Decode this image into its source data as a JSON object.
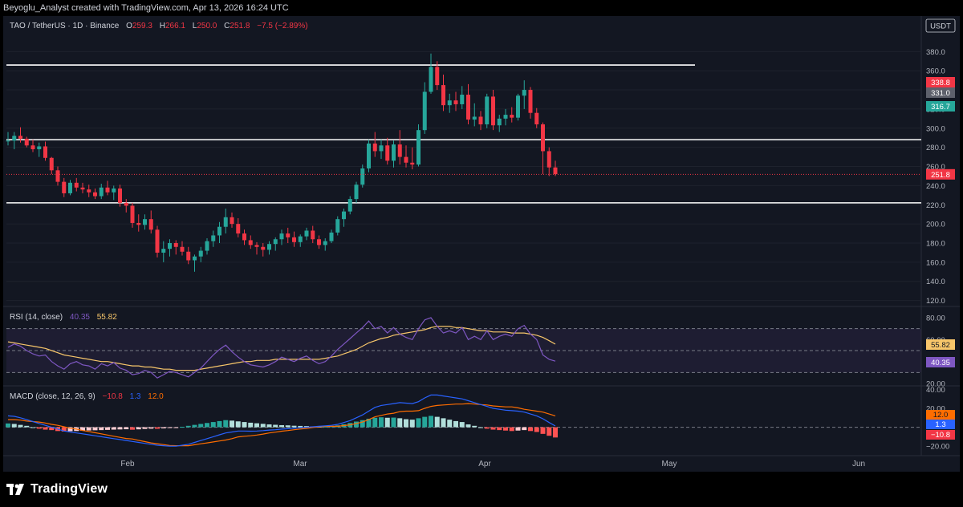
{
  "header": {
    "credit": "Beyoglu_Analyst created with TradingView.com, Apr 13, 2026 16:24 UTC"
  },
  "legend": {
    "symbol": "TAO / TetherUS · 1D · Binance",
    "o_label": "O",
    "o_val": "259.3",
    "h_label": "H",
    "h_val": "266.1",
    "l_label": "L",
    "l_val": "250.0",
    "c_label": "C",
    "c_val": "251.8",
    "change": "−7.5 (−2.89%)"
  },
  "currency_badge": "USDT",
  "price_tags": {
    "t1": "338.8",
    "t2": "331.0",
    "t3": "316.7",
    "last": "251.8"
  },
  "rsi": {
    "label": "RSI (14, close)",
    "val1": "40.35",
    "val2": "55.82",
    "tag_ma": "55.82",
    "tag_rsi": "40.35"
  },
  "macd": {
    "label": "MACD (close, 12, 26, 9)",
    "hist": "−10.8",
    "macd": "1.3",
    "signal": "12.0",
    "tag_signal": "12.0",
    "tag_macd": "1.3",
    "tag_hist": "−10.8"
  },
  "brand": {
    "name": "TradingView"
  },
  "colors": {
    "up": "#26a69a",
    "down": "#f23645",
    "bg": "#131722",
    "grid": "#2a2e39",
    "rsi": "#7e57c2",
    "rsi_ma": "#f7c66a",
    "macd": "#2962ff",
    "signal": "#ff6d00",
    "level": "#ffffff"
  },
  "chart_data": [
    {
      "type": "candlestick",
      "title": "TAO / TetherUS · 1D · Binance",
      "x_ticks": [
        "Feb",
        "Mar",
        "Apr",
        "May",
        "Jun"
      ],
      "y_ticks": [
        120,
        140,
        160,
        180,
        200,
        220,
        240,
        260,
        280,
        300,
        320,
        340,
        360,
        380
      ],
      "ylim": [
        118,
        392
      ],
      "horizontal_levels": [
        366,
        288,
        222
      ],
      "candles_ohlc": [
        [
          287,
          296,
          282,
          287
        ],
        [
          287,
          296,
          278,
          292
        ],
        [
          292,
          301,
          285,
          289
        ],
        [
          289,
          291,
          280,
          282
        ],
        [
          282,
          288,
          275,
          278
        ],
        [
          278,
          285,
          270,
          281
        ],
        [
          281,
          286,
          266,
          269
        ],
        [
          269,
          270,
          252,
          256
        ],
        [
          256,
          260,
          240,
          244
        ],
        [
          244,
          248,
          228,
          232
        ],
        [
          232,
          246,
          230,
          243
        ],
        [
          243,
          248,
          234,
          238
        ],
        [
          238,
          243,
          232,
          236
        ],
        [
          236,
          241,
          228,
          233
        ],
        [
          233,
          237,
          226,
          229
        ],
        [
          229,
          242,
          226,
          238
        ],
        [
          238,
          245,
          230,
          233
        ],
        [
          233,
          240,
          225,
          237
        ],
        [
          237,
          241,
          218,
          222
        ],
        [
          222,
          226,
          212,
          219
        ],
        [
          219,
          222,
          196,
          201
        ],
        [
          201,
          210,
          192,
          199
        ],
        [
          199,
          210,
          194,
          205
        ],
        [
          205,
          214,
          190,
          194
        ],
        [
          194,
          198,
          165,
          170
        ],
        [
          170,
          182,
          160,
          174
        ],
        [
          174,
          184,
          166,
          180
        ],
        [
          180,
          183,
          168,
          176
        ],
        [
          176,
          182,
          167,
          171
        ],
        [
          171,
          176,
          158,
          162
        ],
        [
          162,
          168,
          150,
          166
        ],
        [
          166,
          176,
          160,
          172
        ],
        [
          172,
          185,
          168,
          182
        ],
        [
          182,
          193,
          176,
          188
        ],
        [
          188,
          202,
          180,
          197
        ],
        [
          197,
          216,
          190,
          207
        ],
        [
          207,
          212,
          196,
          200
        ],
        [
          200,
          206,
          186,
          190
        ],
        [
          190,
          194,
          178,
          183
        ],
        [
          183,
          188,
          174,
          178
        ],
        [
          178,
          181,
          168,
          176
        ],
        [
          176,
          180,
          166,
          173
        ],
        [
          173,
          182,
          168,
          179
        ],
        [
          179,
          186,
          172,
          184
        ],
        [
          184,
          194,
          178,
          190
        ],
        [
          190,
          196,
          180,
          186
        ],
        [
          186,
          192,
          176,
          181
        ],
        [
          181,
          189,
          176,
          187
        ],
        [
          187,
          196,
          183,
          193
        ],
        [
          193,
          198,
          180,
          184
        ],
        [
          184,
          188,
          174,
          178
        ],
        [
          178,
          185,
          172,
          182
        ],
        [
          182,
          194,
          180,
          191
        ],
        [
          191,
          208,
          188,
          205
        ],
        [
          205,
          216,
          197,
          213
        ],
        [
          213,
          229,
          210,
          226
        ],
        [
          226,
          244,
          222,
          241
        ],
        [
          241,
          262,
          238,
          258
        ],
        [
          258,
          288,
          254,
          284
        ],
        [
          284,
          296,
          270,
          276
        ],
        [
          276,
          288,
          268,
          282
        ],
        [
          282,
          290,
          262,
          266
        ],
        [
          266,
          287,
          259,
          283
        ],
        [
          283,
          298,
          262,
          270
        ],
        [
          270,
          282,
          259,
          264
        ],
        [
          264,
          280,
          257,
          262
        ],
        [
          262,
          304,
          260,
          298
        ],
        [
          298,
          348,
          294,
          338
        ],
        [
          338,
          378,
          336,
          364
        ],
        [
          364,
          370,
          340,
          345
        ],
        [
          345,
          356,
          318,
          324
        ],
        [
          324,
          336,
          316,
          329
        ],
        [
          329,
          338,
          318,
          325
        ],
        [
          325,
          344,
          320,
          335
        ],
        [
          335,
          346,
          304,
          309
        ],
        [
          309,
          326,
          302,
          312
        ],
        [
          312,
          318,
          298,
          304
        ],
        [
          304,
          336,
          300,
          333
        ],
        [
          333,
          340,
          298,
          303
        ],
        [
          303,
          314,
          296,
          310
        ],
        [
          310,
          320,
          303,
          314
        ],
        [
          314,
          322,
          306,
          311
        ],
        [
          311,
          336,
          308,
          334
        ],
        [
          334,
          350,
          320,
          340
        ],
        [
          340,
          343,
          310,
          316
        ],
        [
          316,
          321,
          300,
          304
        ],
        [
          304,
          306,
          252,
          276
        ],
        [
          276,
          280,
          250,
          259
        ],
        [
          259,
          266,
          250,
          252
        ]
      ],
      "last_price": 251.8
    },
    {
      "type": "line",
      "title": "RSI (14, close)",
      "y_ticks": [
        20,
        60,
        80
      ],
      "ylim": [
        20,
        80
      ],
      "bands": [
        30,
        50,
        70
      ],
      "series": [
        {
          "name": "RSI",
          "values": [
            53,
            56,
            54,
            50,
            47,
            45,
            46,
            40,
            36,
            33,
            38,
            40,
            37,
            36,
            33,
            38,
            36,
            39,
            34,
            32,
            28,
            29,
            32,
            30,
            25,
            28,
            31,
            30,
            28,
            26,
            30,
            34,
            40,
            46,
            51,
            55,
            49,
            44,
            40,
            37,
            36,
            35,
            37,
            40,
            44,
            42,
            40,
            43,
            45,
            41,
            38,
            40,
            45,
            51,
            56,
            61,
            66,
            71,
            77,
            70,
            72,
            66,
            71,
            65,
            62,
            60,
            70,
            78,
            80,
            72,
            66,
            68,
            66,
            71,
            60,
            63,
            60,
            68,
            60,
            63,
            65,
            63,
            70,
            73,
            65,
            60,
            46,
            42,
            40.35
          ]
        },
        {
          "name": "MA",
          "values": [
            58,
            57,
            56,
            55,
            54,
            53,
            52,
            50,
            48,
            46,
            45,
            44,
            43,
            42,
            41,
            40,
            40,
            39,
            38,
            37,
            36,
            36,
            35,
            35,
            34,
            33,
            33,
            32,
            32,
            32,
            32,
            33,
            34,
            35,
            36,
            37,
            38,
            39,
            40,
            40,
            41,
            41,
            41,
            42,
            42,
            42,
            42,
            42,
            42,
            42,
            42,
            43,
            44,
            45,
            47,
            49,
            51,
            54,
            57,
            59,
            61,
            62,
            64,
            65,
            66,
            67,
            68,
            69,
            71,
            72,
            72,
            72,
            71,
            71,
            70,
            69,
            68,
            68,
            67,
            67,
            67,
            66,
            66,
            66,
            65,
            64,
            62,
            59,
            55.82
          ]
        }
      ]
    },
    {
      "type": "bar",
      "title": "MACD (close, 12, 26, 9)",
      "y_ticks": [
        -20,
        20,
        40
      ],
      "ylim": [
        -30,
        42
      ],
      "series": [
        {
          "name": "Histogram",
          "values": [
            4,
            3.5,
            2.5,
            1.5,
            0,
            -1.5,
            -2.5,
            -3,
            -4,
            -4.5,
            -4.2,
            -4,
            -3.6,
            -3.4,
            -3.2,
            -3,
            -2.8,
            -2.5,
            -2.3,
            -2.1,
            -2.6,
            -2.2,
            -1.8,
            -1.5,
            -1.6,
            -1.2,
            -0.8,
            -0.5,
            0.5,
            1.5,
            2.5,
            3.5,
            4.5,
            5.5,
            6.5,
            7.5,
            7,
            6.2,
            5.5,
            4.8,
            4.2,
            3.6,
            3,
            2.6,
            2.2,
            2,
            1.6,
            1.4,
            1.2,
            0.8,
            0.5,
            0.6,
            1,
            2,
            3.2,
            4.5,
            6,
            7.5,
            9,
            10,
            10.5,
            10,
            10.2,
            9.5,
            8.5,
            8,
            9.5,
            11,
            12,
            11,
            9.5,
            8,
            6.5,
            5.5,
            3,
            1.5,
            0,
            -1.5,
            -2.5,
            -3,
            -3.5,
            -4,
            -3.5,
            -3,
            -4,
            -5,
            -7,
            -9,
            -10.8
          ]
        },
        {
          "name": "MACD",
          "values": [
            12,
            11.5,
            10,
            8,
            6,
            4,
            2,
            0,
            -2,
            -4,
            -5,
            -6,
            -7,
            -8,
            -9,
            -10,
            -11,
            -12,
            -13,
            -14,
            -15,
            -16,
            -17,
            -18,
            -19,
            -19.5,
            -20,
            -20,
            -19,
            -18,
            -16,
            -14,
            -12,
            -10,
            -8,
            -6,
            -5,
            -4,
            -4,
            -4.2,
            -4,
            -3.6,
            -3,
            -2.6,
            -2,
            -1.5,
            -1,
            -0.5,
            0,
            0.5,
            1,
            1.5,
            2,
            3,
            5,
            7,
            10,
            13,
            17,
            21,
            23,
            24,
            25,
            26,
            25.5,
            25,
            27,
            31,
            34,
            34,
            33,
            32,
            31,
            30,
            28,
            26,
            24,
            22,
            20,
            19,
            18,
            17.5,
            17,
            16,
            14,
            12,
            9,
            5,
            1.3
          ]
        },
        {
          "name": "Signal",
          "values": [
            8,
            8,
            7.5,
            6.5,
            6,
            5.5,
            4.5,
            3,
            2,
            0.5,
            -1,
            -2,
            -3.5,
            -4.5,
            -5.8,
            -7,
            -8.2,
            -9.5,
            -10.7,
            -11.9,
            -12.4,
            -13.8,
            -15.2,
            -16.5,
            -17.4,
            -18.3,
            -19.2,
            -19.5,
            -19.5,
            -19.5,
            -18.5,
            -17.5,
            -16.5,
            -15.5,
            -14.5,
            -13.5,
            -12,
            -10.2,
            -9.5,
            -9,
            -8.2,
            -7.2,
            -6,
            -5.2,
            -4.2,
            -3.5,
            -2.6,
            -1.9,
            -1.2,
            -0.3,
            0.5,
            0.9,
            1,
            1,
            1.8,
            2.5,
            4,
            5.5,
            8,
            11,
            12.5,
            14,
            14.8,
            16.5,
            17,
            17,
            17.5,
            20,
            22,
            23,
            23.5,
            24,
            24.5,
            24.5,
            25,
            24.5,
            24,
            23.5,
            22.5,
            22,
            21.5,
            21.5,
            20.5,
            19,
            18,
            17,
            16,
            14,
            12.0
          ]
        }
      ]
    }
  ]
}
